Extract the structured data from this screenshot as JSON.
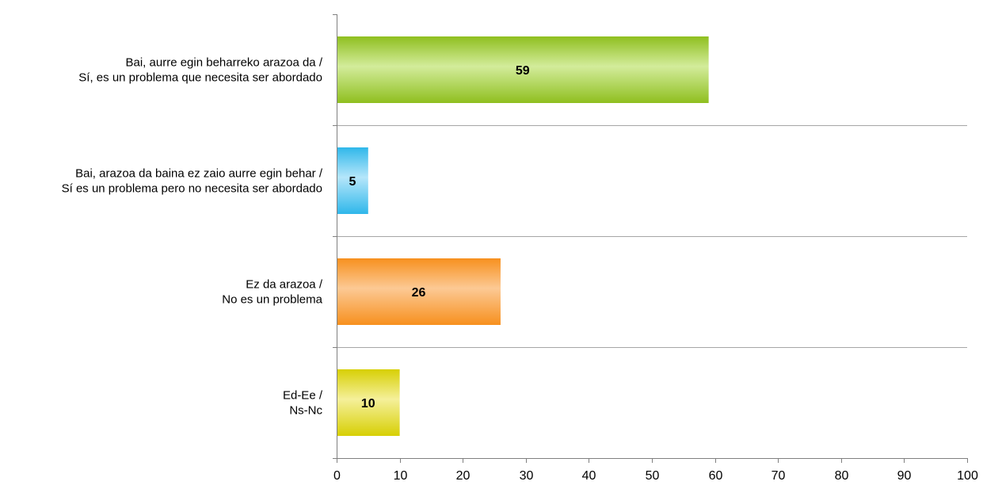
{
  "chart_data": {
    "type": "bar",
    "orientation": "horizontal",
    "categories": [
      [
        "Bai, aurre egin beharreko arazoa da /",
        "Sí, es un problema que necesita ser abordado"
      ],
      [
        "Bai, arazoa da baina ez zaio aurre egin behar /",
        "Sí es un problema pero no necesita ser abordado"
      ],
      [
        "Ez da arazoa /",
        "No es un problema"
      ],
      [
        "Ed-Ee /",
        "Ns-Nc"
      ]
    ],
    "values": [
      59,
      5,
      26,
      10
    ],
    "data_labels": [
      "59",
      "5",
      "26",
      "10"
    ],
    "bar_colors": [
      [
        "#8fbf1f",
        "#d3ec9b"
      ],
      [
        "#2fb7ea",
        "#b5e6fa"
      ],
      [
        "#f7901e",
        "#fcc994"
      ],
      [
        "#d7cf04",
        "#f5f09a"
      ]
    ],
    "xlim": [
      0,
      100
    ],
    "x_ticks": [
      "0",
      "10",
      "20",
      "30",
      "40",
      "50",
      "60",
      "70",
      "80",
      "90",
      "100"
    ],
    "x_tick_values": [
      0,
      10,
      20,
      30,
      40,
      50,
      60,
      70,
      80,
      90,
      100
    ],
    "title": "",
    "xlabel": "",
    "ylabel": "",
    "grid": "horizontal separators between categories",
    "legend": "none"
  }
}
